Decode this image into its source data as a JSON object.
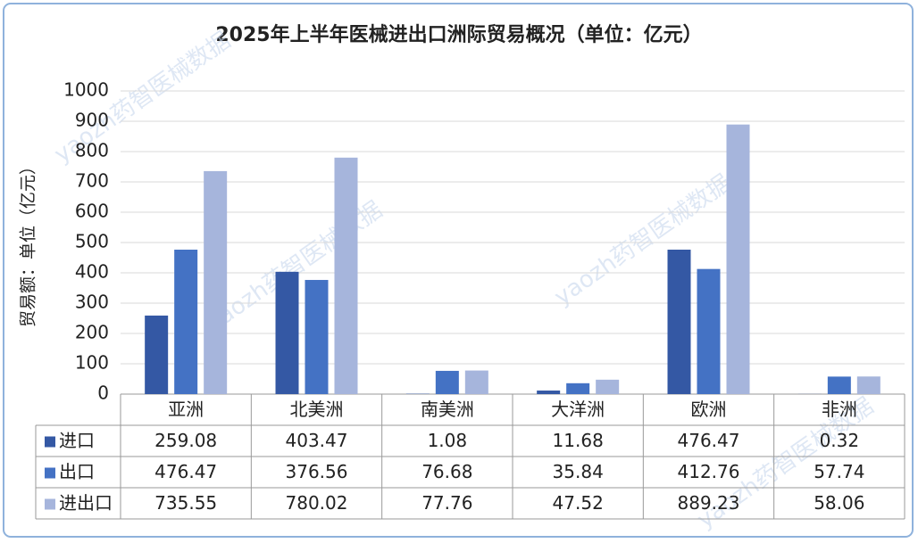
{
  "chart_data": {
    "type": "bar",
    "title": "2025年上半年医械进出口洲际贸易概况（单位：亿元）",
    "y_label": "贸易额：单位（亿元）",
    "watermark": "yaozh药智医械数据",
    "categories": [
      "亚洲",
      "北美洲",
      "南美洲",
      "大洋洲",
      "欧洲",
      "非洲"
    ],
    "series": [
      {
        "name": "进口",
        "color": "#3458a4",
        "values": [
          259.08,
          403.47,
          1.08,
          11.68,
          476.47,
          0.32
        ]
      },
      {
        "name": "出口",
        "color": "#4472c4",
        "values": [
          476.47,
          376.56,
          76.68,
          35.84,
          412.76,
          57.74
        ]
      },
      {
        "name": "进出口",
        "color": "#a6b5dc",
        "values": [
          735.55,
          780.02,
          77.76,
          47.52,
          889.23,
          58.06
        ]
      }
    ],
    "ylim": [
      0,
      1000
    ],
    "yticks": [
      0,
      100,
      200,
      300,
      400,
      500,
      600,
      700,
      800,
      900,
      1000
    ],
    "grid": true
  }
}
